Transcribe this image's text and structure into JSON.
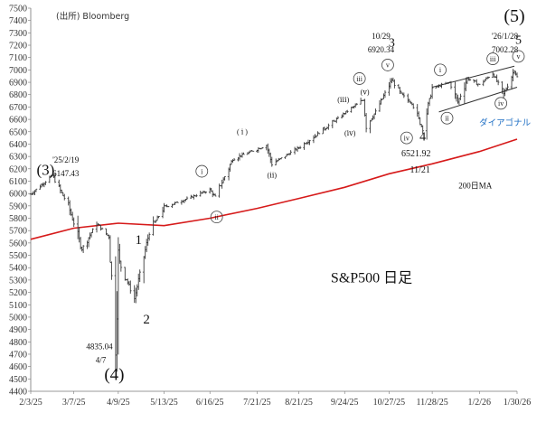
{
  "chart_data": {
    "type": "ohlc",
    "title": "S&P500 日足",
    "source": "(出所) Bloomberg",
    "ylim": [
      4400,
      7500
    ],
    "yticks": [
      4400,
      4500,
      4600,
      4700,
      4800,
      4900,
      5000,
      5100,
      5200,
      5300,
      5400,
      5500,
      5600,
      5700,
      5800,
      5900,
      6000,
      6100,
      6200,
      6300,
      6400,
      6500,
      6600,
      6700,
      6800,
      6900,
      7000,
      7100,
      7200,
      7300,
      7400,
      7500
    ],
    "x_range": [
      "2025-02-03",
      "2026-01-30"
    ],
    "xticks": [
      {
        "date": "2025-02-03",
        "label": "2/3/25"
      },
      {
        "date": "2025-03-07",
        "label": "3/7/25"
      },
      {
        "date": "2025-04-09",
        "label": "4/9/25"
      },
      {
        "date": "2025-05-13",
        "label": "5/13/25"
      },
      {
        "date": "2025-06-16",
        "label": "6/16/25"
      },
      {
        "date": "2025-07-21",
        "label": "7/21/25"
      },
      {
        "date": "2025-08-21",
        "label": "8/21/25"
      },
      {
        "date": "2025-09-24",
        "label": "9/24/25"
      },
      {
        "date": "2025-10-27",
        "label": "10/27/25"
      },
      {
        "date": "2025-11-28",
        "label": "11/28/25"
      },
      {
        "date": "2026-01-02",
        "label": "1/2/26"
      },
      {
        "date": "2026-01-30",
        "label": "1/30/26"
      }
    ],
    "price_anchors": [
      [
        "2025-02-03",
        5995
      ],
      [
        "2025-02-12",
        6080
      ],
      [
        "2025-02-19",
        6147.43
      ],
      [
        "2025-03-03",
        5900
      ],
      [
        "2025-03-13",
        5550
      ],
      [
        "2025-03-24",
        5760
      ],
      [
        "2025-04-02",
        5650
      ],
      [
        "2025-04-07",
        4835.04
      ],
      [
        "2025-04-09",
        5460
      ],
      [
        "2025-04-21",
        5150
      ],
      [
        "2025-05-02",
        5690
      ],
      [
        "2025-05-13",
        5890
      ],
      [
        "2025-06-02",
        5970
      ],
      [
        "2025-06-16",
        6030
      ],
      [
        "2025-06-20",
        5970
      ],
      [
        "2025-07-03",
        6280
      ],
      [
        "2025-07-28",
        6390
      ],
      [
        "2025-08-01",
        6240
      ],
      [
        "2025-08-21",
        6370
      ],
      [
        "2025-09-05",
        6490
      ],
      [
        "2025-09-24",
        6650
      ],
      [
        "2025-10-08",
        6760
      ],
      [
        "2025-10-10",
        6550
      ],
      [
        "2025-10-17",
        6660
      ],
      [
        "2025-10-29",
        6920.34
      ],
      [
        "2025-11-05",
        6800
      ],
      [
        "2025-11-13",
        6730
      ],
      [
        "2025-11-21",
        6521.92
      ],
      [
        "2025-11-28",
        6850
      ],
      [
        "2025-12-11",
        6900
      ],
      [
        "2025-12-17",
        6740
      ],
      [
        "2025-12-24",
        6932
      ],
      [
        "2026-01-02",
        6880
      ],
      [
        "2026-01-12",
        6975
      ],
      [
        "2026-01-20",
        6800
      ],
      [
        "2026-01-28",
        7002.28
      ],
      [
        "2026-01-30",
        6940
      ]
    ],
    "series": [
      {
        "name": "200日MA",
        "color": "#d61a1a",
        "points": [
          [
            "2025-02-03",
            5630
          ],
          [
            "2025-03-07",
            5720
          ],
          [
            "2025-04-09",
            5760
          ],
          [
            "2025-05-13",
            5740
          ],
          [
            "2025-06-16",
            5800
          ],
          [
            "2025-07-21",
            5880
          ],
          [
            "2025-08-21",
            5960
          ],
          [
            "2025-09-24",
            6050
          ],
          [
            "2025-10-27",
            6160
          ],
          [
            "2025-11-28",
            6240
          ],
          [
            "2026-01-02",
            6340
          ],
          [
            "2026-01-30",
            6440
          ]
        ]
      }
    ],
    "channel": {
      "label": "ダイアゴナル",
      "color": "#333333",
      "upper": [
        [
          "2025-11-28",
          6860
        ],
        [
          "2026-01-28",
          7030
        ]
      ],
      "lower": [
        [
          "2025-12-03",
          6660
        ],
        [
          "2026-01-30",
          6860
        ]
      ]
    },
    "annotations": [
      {
        "text": "(3)",
        "date": "2025-02-14",
        "price": 6150,
        "size": 17
      },
      {
        "text": "'25/2/19",
        "date": "2025-03-01",
        "price": 6250,
        "size": 9
      },
      {
        "text": "6147.43",
        "date": "2025-03-01",
        "price": 6140,
        "size": 9
      },
      {
        "text": "1",
        "date": "2025-04-24",
        "price": 5590,
        "size": 15
      },
      {
        "text": "2",
        "date": "2025-04-30",
        "price": 4950,
        "size": 15
      },
      {
        "text": "4835.04",
        "date": "2025-03-26",
        "price": 4740,
        "size": 9
      },
      {
        "text": "4/7",
        "date": "2025-03-27",
        "price": 4630,
        "size": 9
      },
      {
        "text": "(4)",
        "date": "2025-04-06",
        "price": 4490,
        "size": 19
      },
      {
        "text": "10/29",
        "date": "2025-10-21",
        "price": 7250,
        "size": 9
      },
      {
        "text": "6920.34",
        "date": "2025-10-21",
        "price": 7140,
        "size": 9
      },
      {
        "text": "3",
        "date": "2025-10-29",
        "price": 7190,
        "size": 14
      },
      {
        "text": "4",
        "date": "2025-11-21",
        "price": 6430,
        "size": 14
      },
      {
        "text": "6521.92",
        "date": "2025-11-16",
        "price": 6300,
        "size": 10
      },
      {
        "text": "11/21",
        "date": "2025-11-19",
        "price": 6170,
        "size": 10
      },
      {
        "text": "(5)",
        "date": "2026-01-28",
        "price": 7390,
        "size": 20
      },
      {
        "text": "'26/1/28",
        "date": "2026-01-21",
        "price": 7250,
        "size": 9,
        "color": "#cc1111"
      },
      {
        "text": "7002.28",
        "date": "2026-01-21",
        "price": 7140,
        "size": 9,
        "color": "#cc1111"
      },
      {
        "text": "5",
        "date": "2026-01-31",
        "price": 7210,
        "size": 14
      },
      {
        "text": "(ⅲ)",
        "date": "2025-09-23",
        "price": 6740,
        "size": 8
      },
      {
        "text": "(ⅴ)",
        "date": "2025-10-09",
        "price": 6800,
        "size": 8
      },
      {
        "text": "(ⅳ)",
        "date": "2025-09-28",
        "price": 6470,
        "size": 8
      },
      {
        "text": "( ⅰ )",
        "date": "2025-07-10",
        "price": 6480,
        "size": 8
      },
      {
        "text": "(ⅱ)",
        "date": "2025-08-01",
        "price": 6130,
        "size": 8
      },
      {
        "text": "200日MA",
        "date": "2025-12-30",
        "price": 6040,
        "size": 9,
        "color": "#d61a1a"
      },
      {
        "text": "ダイアゴナル",
        "date": "2026-01-21",
        "price": 6550,
        "size": 9.5,
        "color": "#1f6fc4"
      },
      {
        "text": "S&P500 日足",
        "date": "2025-10-14",
        "price": 5280,
        "size": 16
      }
    ],
    "circled_labels": [
      {
        "text": "i",
        "date": "2025-06-10",
        "price": 6180
      },
      {
        "text": "ii",
        "date": "2025-06-21",
        "price": 5810
      },
      {
        "text": "iii",
        "date": "2025-10-05",
        "price": 6930
      },
      {
        "text": "v",
        "date": "2025-10-26",
        "price": 7040
      },
      {
        "text": "iv",
        "date": "2025-11-09",
        "price": 6450
      },
      {
        "text": "i",
        "date": "2025-12-04",
        "price": 7000
      },
      {
        "text": "ii",
        "date": "2025-12-09",
        "price": 6610
      },
      {
        "text": "iii",
        "date": "2026-01-12",
        "price": 7090
      },
      {
        "text": "iv",
        "date": "2026-01-18",
        "price": 6730
      },
      {
        "text": "v",
        "date": "2026-01-31",
        "price": 7110
      }
    ]
  }
}
